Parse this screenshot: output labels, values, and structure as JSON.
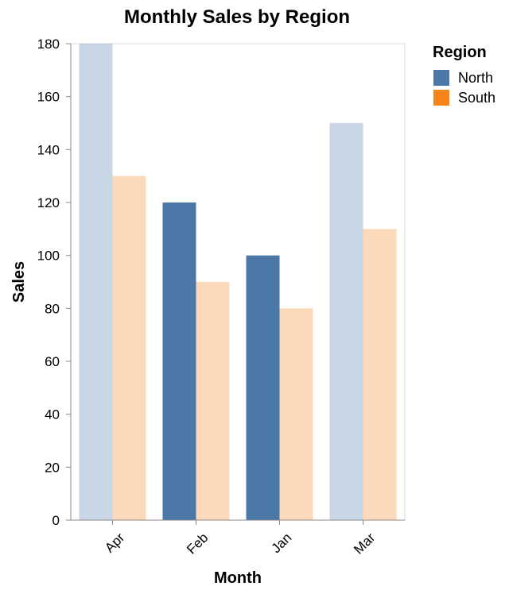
{
  "chart_data": {
    "type": "bar",
    "title": "Monthly Sales by Region",
    "xlabel": "Month",
    "ylabel": "Sales",
    "categories": [
      "Apr",
      "Feb",
      "Jan",
      "Mar"
    ],
    "ylim": [
      0,
      180
    ],
    "yticks": [
      0,
      20,
      40,
      60,
      80,
      100,
      120,
      140,
      160,
      180
    ],
    "grid": false,
    "legend": {
      "title": "Region",
      "placement": "right"
    },
    "series": [
      {
        "name": "North",
        "color": "#4c78a8",
        "values": [
          180,
          120,
          100,
          150
        ],
        "highlighted": [
          false,
          true,
          true,
          false
        ]
      },
      {
        "name": "South",
        "color": "#f58518",
        "values": [
          130,
          90,
          80,
          110
        ],
        "highlighted": [
          false,
          false,
          false,
          false
        ]
      }
    ]
  }
}
